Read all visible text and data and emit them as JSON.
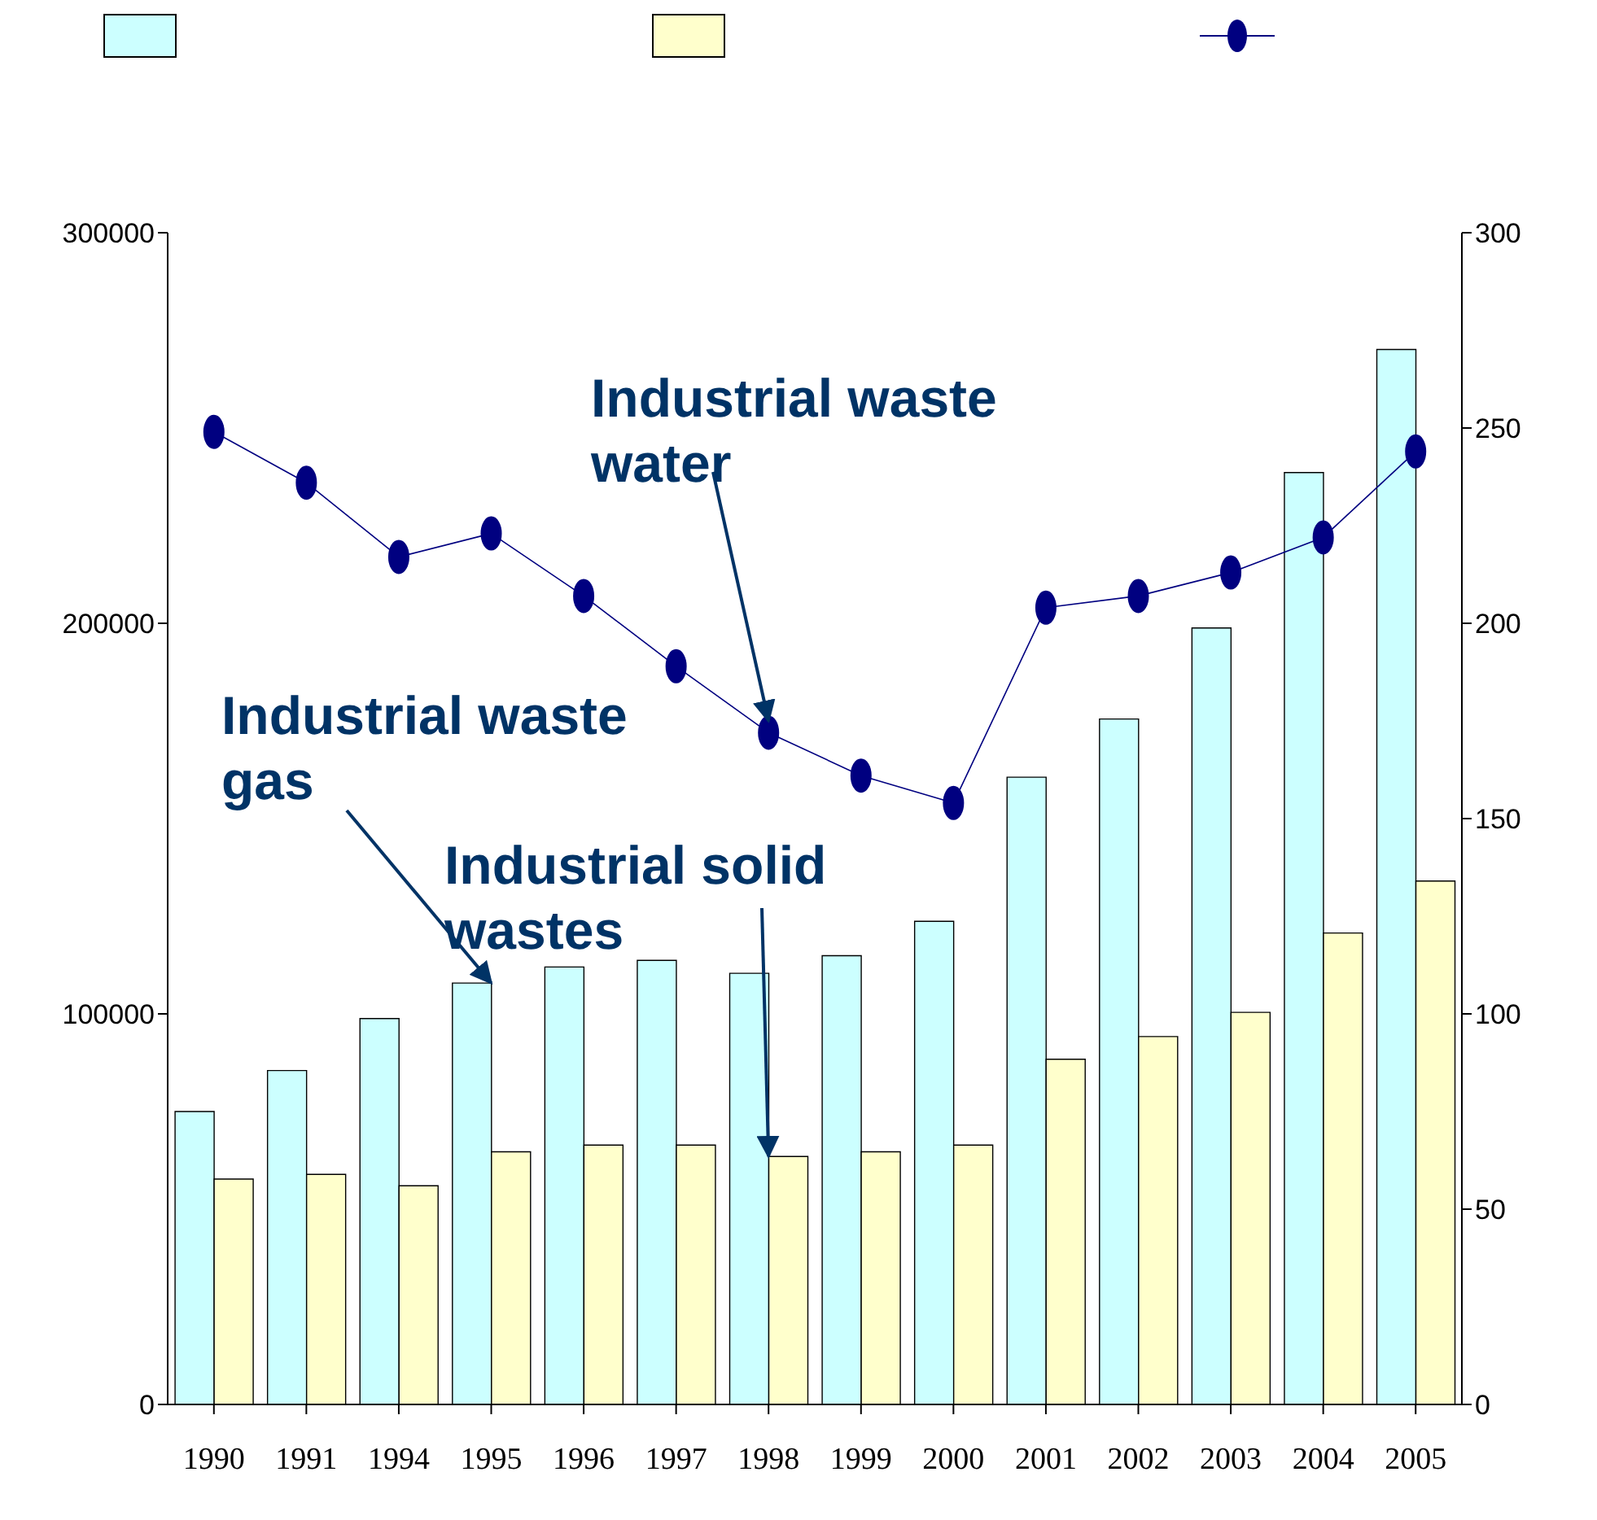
{
  "chart_data": {
    "type": "bar",
    "categories": [
      "1990",
      "1991",
      "1994",
      "1995",
      "1996",
      "1997",
      "1998",
      "1999",
      "2000",
      "2001",
      "2002",
      "2003",
      "2004",
      "2005"
    ],
    "series": [
      {
        "color": "#ccffff",
        "values": [
          75000,
          85500,
          98800,
          107900,
          112000,
          113700,
          110400,
          114900,
          123700,
          160600,
          175500,
          198800,
          238600,
          270100
        ]
      },
      {
        "color": "#ffffcc",
        "values": [
          57700,
          58900,
          56000,
          64700,
          66400,
          66400,
          63500,
          64700,
          66400,
          88400,
          94200,
          100400,
          120700,
          134000
        ]
      },
      {
        "type": "line",
        "axis": "y2",
        "color": "#000080",
        "values": [
          249,
          236,
          217,
          223,
          207,
          189,
          172,
          161,
          154,
          204,
          207,
          213,
          222,
          244
        ]
      }
    ],
    "ylim": [
      0,
      300000
    ],
    "yticks": [
      0,
      100000,
      200000,
      300000
    ],
    "y2lim": [
      0,
      300
    ],
    "y2ticks": [
      0,
      50,
      100,
      150,
      200,
      250,
      300
    ],
    "annotations": [
      {
        "text": "Industrial waste water",
        "x": "1998",
        "y": 175000
      },
      {
        "text": "Industrial waste gas",
        "x": "1995",
        "y": 107900
      },
      {
        "text": "Industrial solid wastes",
        "x": "1998",
        "y": 63500
      }
    ],
    "marker": "circle",
    "line_style": "solid",
    "grid": false
  }
}
